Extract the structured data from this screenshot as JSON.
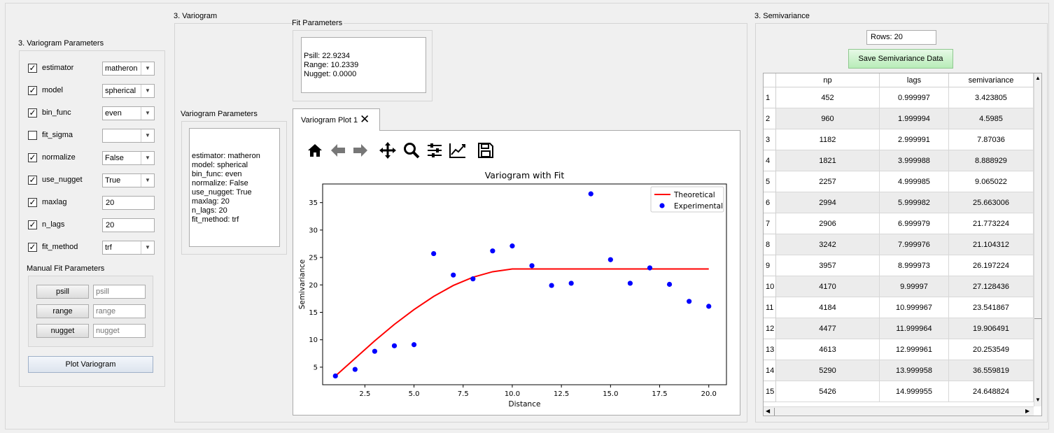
{
  "left_panel": {
    "title": "3. Variogram Parameters",
    "params": [
      {
        "label": "estimator",
        "checked": true,
        "type": "combo",
        "value": "matheron"
      },
      {
        "label": "model",
        "checked": true,
        "type": "combo",
        "value": "spherical"
      },
      {
        "label": "bin_func",
        "checked": true,
        "type": "combo",
        "value": "even"
      },
      {
        "label": "fit_sigma",
        "checked": false,
        "type": "combo",
        "value": ""
      },
      {
        "label": "normalize",
        "checked": true,
        "type": "combo",
        "value": "False"
      },
      {
        "label": "use_nugget",
        "checked": true,
        "type": "combo",
        "value": "True"
      },
      {
        "label": "maxlag",
        "checked": true,
        "type": "text",
        "value": "20"
      },
      {
        "label": "n_lags",
        "checked": true,
        "type": "text",
        "value": "20"
      },
      {
        "label": "fit_method",
        "checked": true,
        "type": "combo",
        "value": "trf"
      }
    ],
    "manual_fit": {
      "title": "Manual Fit Parameters",
      "items": [
        {
          "button": "psill",
          "placeholder": "psill"
        },
        {
          "button": "range",
          "placeholder": "range"
        },
        {
          "button": "nugget",
          "placeholder": "nugget"
        }
      ]
    },
    "plot_button": "Plot Variogram"
  },
  "variogram": {
    "title": "3. Variogram",
    "fit_parameters": {
      "title": "Fit Parameters",
      "text": "Psill: 22.9234\nRange: 10.2339\nNugget: 0.0000"
    },
    "params_summary": {
      "title": "Variogram Parameters",
      "text": "estimator: matheron\nmodel: spherical\nbin_func: even\nnormalize: False\nuse_nugget: True\nmaxlag: 20\nn_lags: 20\nfit_method: trf"
    },
    "tab_label": "Variogram Plot 1",
    "toolbar_icons": [
      "home-icon",
      "back-arrow-icon",
      "forward-arrow-icon",
      "pan-icon",
      "zoom-icon",
      "configure-subplots-icon",
      "edit-axis-icon",
      "save-icon"
    ]
  },
  "chart_data": {
    "type": "scatter",
    "title": "Variogram with Fit",
    "xlabel": "Distance",
    "ylabel": "Semivariance",
    "xlim": [
      0.35,
      20.9
    ],
    "ylim": [
      1.8,
      38.4
    ],
    "xticks": [
      2.5,
      5.0,
      7.5,
      10.0,
      12.5,
      15.0,
      17.5,
      20.0
    ],
    "xtick_labels": [
      "2.5",
      "5.0",
      "7.5",
      "10.0",
      "12.5",
      "15.0",
      "17.5",
      "20.0"
    ],
    "yticks": [
      5,
      10,
      15,
      20,
      25,
      30,
      35
    ],
    "ytick_labels": [
      "5",
      "10",
      "15",
      "20",
      "25",
      "30",
      "35"
    ],
    "legend": [
      "Theoretical",
      "Experimental"
    ],
    "legend_position": "top-right",
    "series": [
      {
        "name": "Theoretical",
        "kind": "line",
        "color": "#ff0000",
        "x": [
          1,
          2,
          3,
          4,
          5,
          6,
          7,
          8,
          9,
          10,
          11,
          12,
          13,
          14,
          15,
          16,
          17,
          18,
          19,
          20
        ],
        "y": [
          3.4,
          6.6,
          9.8,
          12.8,
          15.5,
          17.9,
          19.9,
          21.4,
          22.4,
          22.9,
          22.9,
          22.9,
          22.9,
          22.9,
          22.9,
          22.9,
          22.9,
          22.9,
          22.9,
          22.9
        ]
      },
      {
        "name": "Experimental",
        "kind": "scatter",
        "color": "#0000ff",
        "x": [
          1,
          2,
          3,
          4,
          5,
          6,
          7,
          8,
          9,
          10,
          11,
          12,
          13,
          14,
          15,
          16,
          17,
          18,
          19,
          20
        ],
        "y": [
          3.4,
          4.6,
          7.9,
          8.9,
          9.1,
          25.7,
          21.8,
          21.1,
          26.2,
          27.1,
          23.5,
          19.9,
          20.3,
          36.6,
          24.6,
          20.3,
          23.1,
          20.1,
          17.0,
          16.1
        ]
      }
    ]
  },
  "semivariance": {
    "title": "3. Semivariance",
    "rows_label": "Rows: 20",
    "save_button": "Save Semivariance Data",
    "columns": [
      "np",
      "lags",
      "semivariance"
    ],
    "rows": [
      [
        "1",
        "452",
        "0.999997",
        "3.423805"
      ],
      [
        "2",
        "960",
        "1.999994",
        "4.5985"
      ],
      [
        "3",
        "1182",
        "2.999991",
        "7.87036"
      ],
      [
        "4",
        "1821",
        "3.999988",
        "8.888929"
      ],
      [
        "5",
        "2257",
        "4.999985",
        "9.065022"
      ],
      [
        "6",
        "2994",
        "5.999982",
        "25.663006"
      ],
      [
        "7",
        "2906",
        "6.999979",
        "21.773224"
      ],
      [
        "8",
        "3242",
        "7.999976",
        "21.104312"
      ],
      [
        "9",
        "3957",
        "8.999973",
        "26.197224"
      ],
      [
        "10",
        "4170",
        "9.99997",
        "27.128436"
      ],
      [
        "11",
        "4184",
        "10.999967",
        "23.541867"
      ],
      [
        "12",
        "4477",
        "11.999964",
        "19.906491"
      ],
      [
        "13",
        "4613",
        "12.999961",
        "20.253549"
      ],
      [
        "14",
        "5290",
        "13.999958",
        "36.559819"
      ],
      [
        "15",
        "5426",
        "14.999955",
        "24.648824"
      ]
    ]
  }
}
